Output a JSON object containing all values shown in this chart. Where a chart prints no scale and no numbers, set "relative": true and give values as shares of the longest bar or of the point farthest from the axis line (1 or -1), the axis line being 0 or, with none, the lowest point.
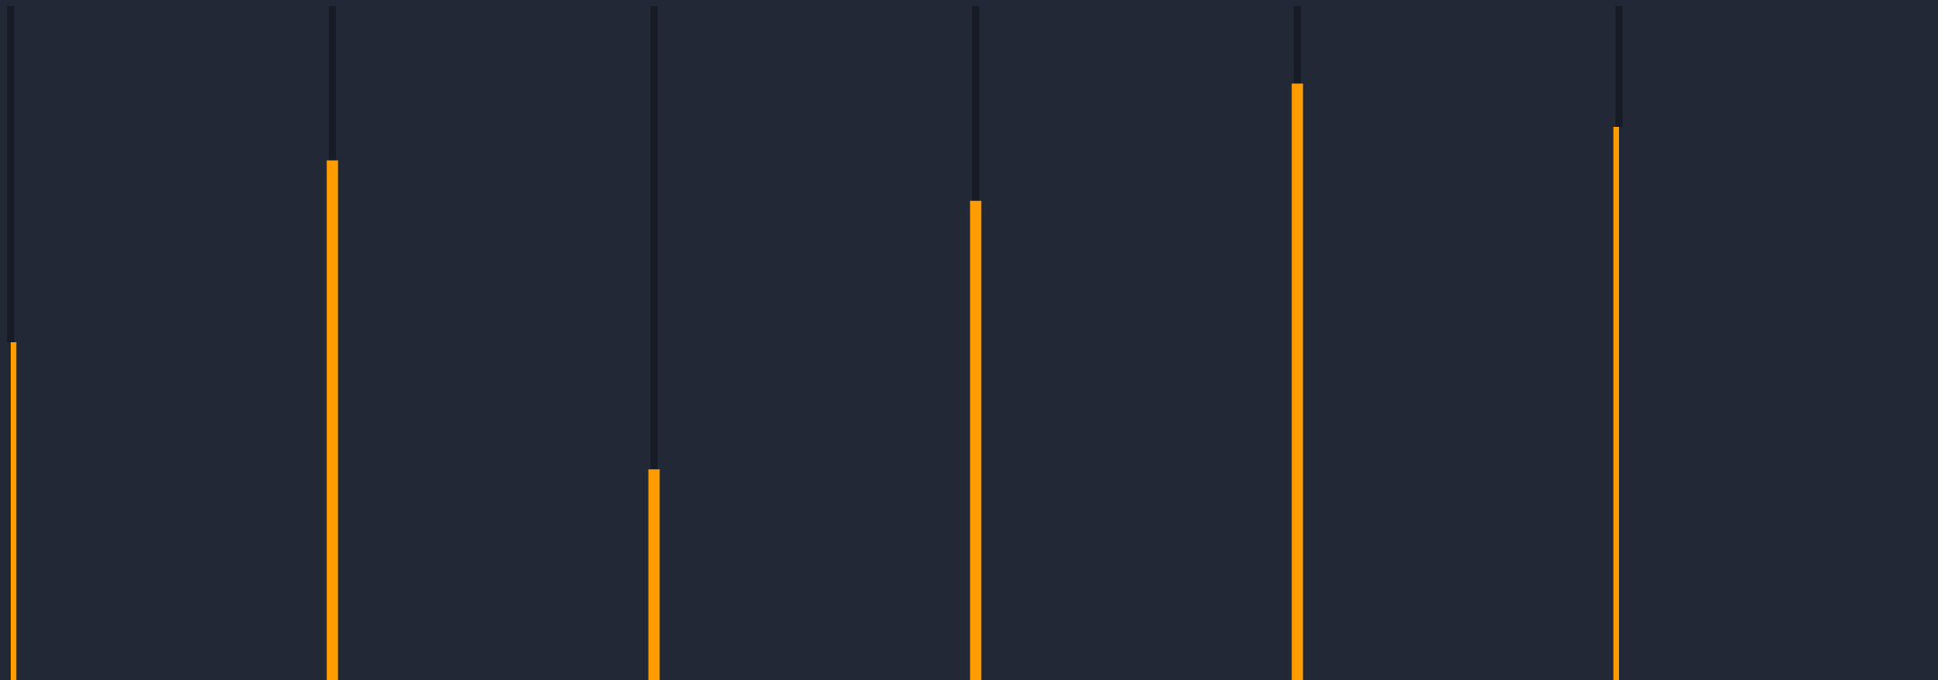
{
  "chart_data": {
    "type": "bar",
    "relative": true,
    "categories": [
      null,
      null,
      null,
      null,
      null,
      null
    ],
    "legend": false,
    "grid": false,
    "series": [
      {
        "color": "#ff9c00",
        "values": [
          0.566,
          0.871,
          0.353,
          0.803,
          1,
          0.927
        ]
      }
    ]
  }
}
